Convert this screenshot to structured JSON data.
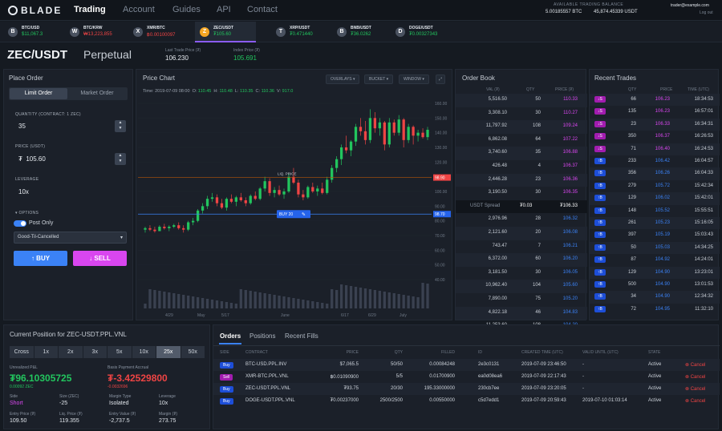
{
  "nav": {
    "logo": "BLADE",
    "items": [
      "Trading",
      "Account",
      "Guides",
      "API",
      "Contact"
    ],
    "balance_label": "AVAILABLE TRADING BALANCE",
    "balance_btc": "5.00185557 BTC",
    "balance_usdt": "45,874.45339 USDT",
    "email": "trader@example.com",
    "logout": "Log out"
  },
  "tickers": [
    {
      "icon": "B",
      "sym": "BTC/USD",
      "price": "$11,067.3",
      "color": "#22c55e"
    },
    {
      "icon": "W",
      "sym": "BTC/KRW",
      "price": "₩13,223,855",
      "color": "#ef4444"
    },
    {
      "icon": "X",
      "sym": "XMR/BTC",
      "price": "฿0.00100097",
      "color": "#ef4444"
    },
    {
      "icon": "Z",
      "sym": "ZEC/USDT",
      "price": "₮105.60",
      "color": "#22c55e"
    },
    {
      "icon": "T",
      "sym": "XRP/USDT",
      "price": "₮0.471440",
      "color": "#22c55e"
    },
    {
      "icon": "B",
      "sym": "BNB/USDT",
      "price": "₮36.0262",
      "color": "#22c55e"
    },
    {
      "icon": "D",
      "sym": "DOGE/USDT",
      "price": "₮0.00327343",
      "color": "#22c55e"
    }
  ],
  "pair": {
    "name": "ZEC/USDT",
    "type": "Perpetual",
    "last_label": "Last Trade Price (₮)",
    "last_value": "106.230",
    "index_label": "Index Price (₮)",
    "index_value": "105.691"
  },
  "order_form": {
    "title": "Place Order",
    "tabs": [
      "Limit Order",
      "Market Order"
    ],
    "qty_label": "QUANTITY (CONTRACT: 1 ZEC)",
    "qty_value": "35",
    "price_label": "PRICE (USDT)",
    "price_prefix": "₮",
    "price_value": "105.60",
    "lev_label": "LEVERAGE",
    "lev_value": "10x",
    "options_label": "OPTIONS",
    "post_only": "Post Only",
    "tif": "Good-Til-Cancelled",
    "buy": "↑ BUY",
    "sell": "↓ SELL"
  },
  "chart": {
    "title": "Price Chart",
    "buttons": [
      "OVERLAYS ▾",
      "BUCKET ▾",
      "WINDOW ▾"
    ],
    "time": "2019-07-09 08:00",
    "ohlcv": [
      {
        "k": "O:",
        "v": "110.45"
      },
      {
        "k": "H:",
        "v": "110.48"
      },
      {
        "k": "L:",
        "v": "110.35"
      },
      {
        "k": "C:",
        "v": "110.36"
      },
      {
        "k": "V:",
        "v": "917.0"
      }
    ],
    "liq_label": "LIQ. PRICE",
    "buy_tag": "BUY 20",
    "liq_value": "98.90",
    "buy_value": "98.70",
    "y_ticks": [
      "160.00",
      "150.00",
      "140.00",
      "130.00",
      "120.00",
      "110.00",
      "100.00",
      "90.00",
      "80.00",
      "70.00",
      "60.00",
      "50.00",
      "40.00"
    ],
    "x_ticks": [
      "4/29",
      "May",
      "5/17",
      "June",
      "6/17",
      "6/29",
      "July"
    ]
  },
  "orderbook": {
    "title": "Order Book",
    "headers": [
      "VAL (₮)",
      "QTY",
      "PRICE (₮)"
    ],
    "asks": [
      [
        "5,516.50",
        "50",
        "110.33"
      ],
      [
        "3,308.10",
        "30",
        "110.27"
      ],
      [
        "11,797.92",
        "108",
        "109.24"
      ],
      [
        "6,862.08",
        "64",
        "107.22"
      ],
      [
        "3,740.60",
        "35",
        "106.88"
      ],
      [
        "426.48",
        "4",
        "106.37"
      ],
      [
        "2,446.28",
        "23",
        "106.36"
      ],
      [
        "3,190.50",
        "30",
        "106.35"
      ]
    ],
    "spread_label": "USDT Spread",
    "spread_value": "₮0.03",
    "spread_price": "₮106.33",
    "bids": [
      [
        "2,976.96",
        "28",
        "106.32"
      ],
      [
        "2,121.60",
        "20",
        "106.08"
      ],
      [
        "743.47",
        "7",
        "106.21"
      ],
      [
        "6,372.00",
        "60",
        "106.20"
      ],
      [
        "3,181.50",
        "30",
        "106.05"
      ],
      [
        "10,962.40",
        "104",
        "105.60"
      ],
      [
        "7,890.00",
        "75",
        "105.20"
      ],
      [
        "4,822.18",
        "46",
        "104.83"
      ],
      [
        "11,253.60",
        "108",
        "104.20"
      ]
    ]
  },
  "trades": {
    "title": "Recent Trades",
    "headers": [
      "QTY",
      "PRICE",
      "TIME (UTC)"
    ],
    "rows": [
      [
        "↓S",
        "66",
        "106.23",
        "18:34:53"
      ],
      [
        "↓S",
        "135",
        "106.23",
        "16:57:01"
      ],
      [
        "↓S",
        "23",
        "106.33",
        "16:34:31"
      ],
      [
        "↓S",
        "350",
        "106.37",
        "16:26:53"
      ],
      [
        "↓S",
        "71",
        "106.40",
        "16:24:53"
      ],
      [
        "↑B",
        "233",
        "106.42",
        "16:04:57"
      ],
      [
        "↑B",
        "356",
        "106.26",
        "16:04:33"
      ],
      [
        "↑B",
        "279",
        "105.72",
        "15:42:34"
      ],
      [
        "↑B",
        "129",
        "106.02",
        "15:42:01"
      ],
      [
        "↑B",
        "148",
        "105.52",
        "15:55:51"
      ],
      [
        "↑B",
        "261",
        "105.23",
        "15:16:05"
      ],
      [
        "↑B",
        "397",
        "105.19",
        "15:03:43"
      ],
      [
        "↑B",
        "50",
        "105.03",
        "14:34:25"
      ],
      [
        "↑B",
        "87",
        "104.92",
        "14:24:01"
      ],
      [
        "↑B",
        "129",
        "104.90",
        "13:23:01"
      ],
      [
        "↑B",
        "500",
        "104.90",
        "13:01:53"
      ],
      [
        "↑B",
        "34",
        "104.90",
        "12:34:32"
      ],
      [
        "↑B",
        "72",
        "104.95",
        "11:32:10"
      ]
    ]
  },
  "position": {
    "title": "Current Position for ZEC-USDT.PPL.VNL",
    "leverage": [
      "Cross",
      "1x",
      "2x",
      "3x",
      "5x",
      "10x",
      "25x",
      "50x"
    ],
    "upnl_label": "Unrealized P&L",
    "upnl_value": "₮96.10305725",
    "upnl_btc": "0.00092 ZEC",
    "bp_label": "Basis Payment Accrual",
    "bp_value": "₮-3.42529800",
    "bp_btc": "-0.0032696",
    "fields": [
      {
        "k": "Side",
        "v": "Short"
      },
      {
        "k": "Size (ZEC)",
        "v": "-25"
      },
      {
        "k": "Margin Type",
        "v": "Isolated"
      },
      {
        "k": "Leverage",
        "v": "10x"
      },
      {
        "k": "Entry Price (₮)",
        "v": "109.50"
      },
      {
        "k": "Liq. Price (₮)",
        "v": "119.355"
      },
      {
        "k": "Entry Value (₮)",
        "v": "-2,737.5"
      },
      {
        "k": "Margin (₮)",
        "v": "273.75"
      }
    ]
  },
  "orders": {
    "tabs": [
      "Orders",
      "Positions",
      "Recent Fills"
    ],
    "headers": [
      "SIDE",
      "CONTRACT",
      "PRICE",
      "QTY",
      "FILLED",
      "ID",
      "CREATED TIME (UTC)",
      "VALID UNTIL (UTC)",
      "STATE"
    ],
    "rows": [
      [
        "Buy",
        "BTC-USD.PPL.INV",
        "$7,065.5",
        "50/50",
        "0.00084248",
        "2e3c0131",
        "2019-07-09 23:46:50",
        "-",
        "Active"
      ],
      [
        "Sell",
        "XMR-BTC.PPL.VNL",
        "฿0.01090900",
        "5/5",
        "0.01700900",
        "ea0d08ea6",
        "2019-07-09 22:17:43",
        "-",
        "Active"
      ],
      [
        "Buy",
        "ZEC-USDT.PPL.VNL",
        "₮93.75",
        "20/30",
        "195.33000000",
        "230cb7ee",
        "2019-07-09 23:20:05",
        "-",
        "Active"
      ],
      [
        "Buy",
        "DOGE-USDT.PPL.VNL",
        "₮0.00237000",
        "2500/2500",
        "0.00550000",
        "c5d7edd1",
        "2019-07-09 20:59:43",
        "2019-07-10 01:03:14",
        "Active"
      ]
    ],
    "cancel": "Cancel"
  },
  "colors": {
    "green": "#22c55e",
    "red": "#ef4444",
    "blue": "#3b82f6",
    "purple": "#8b5cf6",
    "magenta": "#d946ef"
  },
  "chart_data": {
    "type": "candlestick",
    "y_range": [
      40,
      160
    ],
    "candles": [
      [
        74,
        76,
        72,
        75
      ],
      [
        75,
        77,
        73,
        74
      ],
      [
        74,
        76,
        72,
        73
      ],
      [
        73,
        77,
        73,
        76
      ],
      [
        76,
        78,
        74,
        75
      ],
      [
        75,
        77,
        73,
        76
      ],
      [
        76,
        78,
        75,
        77
      ],
      [
        77,
        79,
        74,
        75
      ],
      [
        75,
        77,
        72,
        74
      ],
      [
        74,
        80,
        73,
        79
      ],
      [
        79,
        82,
        77,
        80
      ],
      [
        80,
        88,
        79,
        87
      ],
      [
        87,
        92,
        85,
        90
      ],
      [
        90,
        97,
        88,
        95
      ],
      [
        95,
        99,
        93,
        96
      ],
      [
        96,
        98,
        90,
        92
      ],
      [
        92,
        95,
        88,
        89
      ],
      [
        89,
        96,
        87,
        95
      ],
      [
        95,
        98,
        92,
        93
      ],
      [
        93,
        97,
        90,
        96
      ],
      [
        96,
        99,
        93,
        94
      ],
      [
        94,
        96,
        90,
        92
      ],
      [
        92,
        98,
        91,
        97
      ],
      [
        97,
        100,
        94,
        95
      ],
      [
        95,
        103,
        94,
        102
      ],
      [
        102,
        110,
        100,
        107
      ],
      [
        107,
        109,
        97,
        99
      ],
      [
        99,
        103,
        96,
        101
      ],
      [
        101,
        104,
        97,
        98
      ],
      [
        98,
        102,
        95,
        100
      ],
      [
        100,
        112,
        99,
        110
      ],
      [
        110,
        116,
        105,
        106
      ],
      [
        106,
        108,
        96,
        98
      ],
      [
        98,
        101,
        94,
        96
      ],
      [
        96,
        104,
        95,
        103
      ],
      [
        103,
        106,
        99,
        100
      ],
      [
        100,
        104,
        97,
        102
      ],
      [
        102,
        106,
        98,
        99
      ],
      [
        99,
        110,
        98,
        108
      ],
      [
        108,
        118,
        106,
        116
      ],
      [
        116,
        124,
        113,
        122
      ],
      [
        122,
        132,
        118,
        130
      ],
      [
        130,
        138,
        126,
        128
      ],
      [
        128,
        135,
        124,
        134
      ],
      [
        134,
        146,
        131,
        144
      ],
      [
        144,
        150,
        138,
        141
      ],
      [
        141,
        148,
        132,
        135
      ],
      [
        135,
        156,
        133,
        150
      ],
      [
        150,
        154,
        140,
        143
      ],
      [
        143,
        150,
        138,
        147
      ],
      [
        147,
        148,
        128,
        132
      ],
      [
        132,
        150,
        130,
        147
      ],
      [
        147,
        149,
        138,
        140
      ],
      [
        140,
        152,
        138,
        149
      ],
      [
        149,
        150,
        130,
        135
      ],
      [
        135,
        146,
        133,
        144
      ],
      [
        144,
        145,
        132,
        138
      ],
      [
        138,
        142,
        134,
        140
      ],
      [
        140,
        143,
        136,
        137
      ],
      [
        137,
        144,
        135,
        142
      ]
    ]
  }
}
